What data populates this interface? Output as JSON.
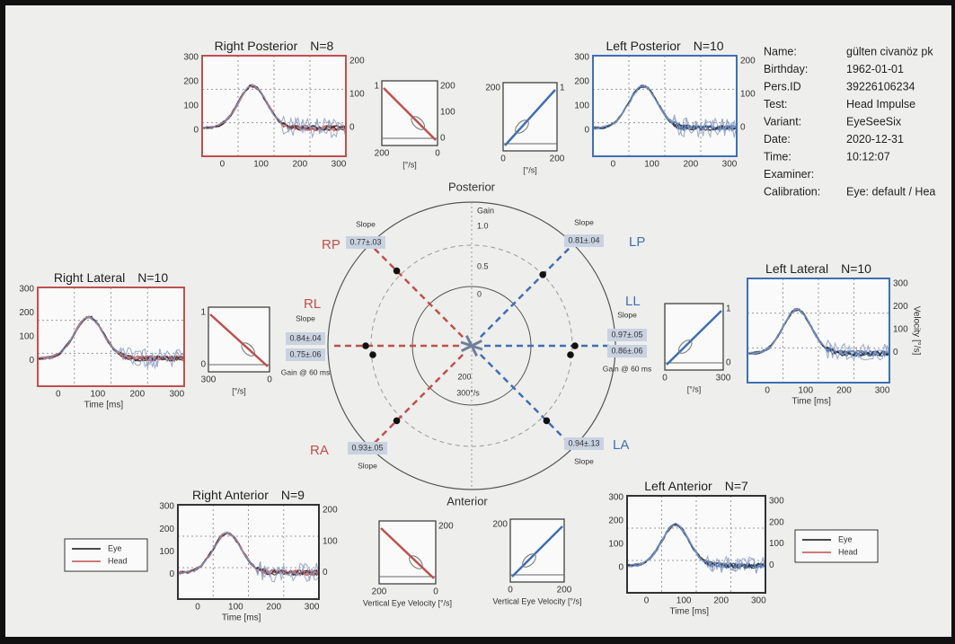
{
  "info": [
    {
      "label": "Name:",
      "value": "gülten civanöz pk"
    },
    {
      "label": "Birthday:",
      "value": "1962-01-01"
    },
    {
      "label": "Pers.ID",
      "value": "39226106234"
    },
    {
      "label": "Test:",
      "value": "Head Impulse"
    },
    {
      "label": "Variant:",
      "value": "EyeSeeSix"
    },
    {
      "label": "Date:",
      "value": "2020-12-31"
    },
    {
      "label": "Time:",
      "value": "10:12:07"
    },
    {
      "label": "Examiner:"
    },
    {
      "label": "Calibration:",
      "value": "Eye: default / Hea"
    }
  ],
  "impulse_panels": [
    {
      "title": "Right Posterior",
      "n": "N=8",
      "yticks": [
        300,
        200,
        100,
        0
      ],
      "y2ticks": [
        200,
        100,
        0
      ],
      "xticks": [
        0,
        100,
        200,
        300
      ]
    },
    {
      "title": "Left Posterior",
      "n": "N=10",
      "yticks": [
        300,
        200,
        100,
        0
      ],
      "y2ticks": [
        200,
        100,
        0
      ],
      "xticks": [
        0,
        100,
        200,
        300
      ]
    },
    {
      "title": "Right Lateral",
      "n": "N=10",
      "yticks": [
        300,
        200,
        100,
        0
      ],
      "xticks": [
        0,
        100,
        200,
        300
      ],
      "xlabel": "Time [ms]"
    },
    {
      "title": "Left Lateral",
      "n": "N=10",
      "y2ticks": [
        300,
        200,
        100,
        0
      ],
      "xticks": [
        0,
        100,
        200,
        300
      ],
      "xlabel": "Time [ms]",
      "y2label": "Velocity [°/s]"
    },
    {
      "title": "Right Anterior",
      "n": "N=9",
      "yticks": [
        300,
        200,
        100,
        0
      ],
      "y2ticks": [
        200,
        100,
        0
      ],
      "xticks": [
        0,
        100,
        200,
        300
      ],
      "xlabel": "Time [ms]"
    },
    {
      "title": "Left Anterior",
      "n": "N=7",
      "yticks": [
        300,
        200,
        100,
        0
      ],
      "y2ticks": [
        300,
        200,
        100,
        0
      ],
      "xticks": [
        0,
        100,
        200,
        300
      ],
      "xlabel": "Time [ms]"
    }
  ],
  "gain_panels": [
    {
      "y2ticks": [
        200,
        100,
        0
      ],
      "yticks": [
        1
      ],
      "xticks": [
        200,
        0
      ],
      "xlabel": "[°/s]"
    },
    {
      "yticks": [
        200
      ],
      "y2ticks": [
        1
      ],
      "xticks": [
        0,
        200
      ],
      "xlabel": "[°/s]"
    },
    {
      "yticks": [
        1,
        0
      ],
      "xticks": [
        300,
        0
      ],
      "xlabel": "[°/s]"
    },
    {
      "y2ticks": [
        1,
        0
      ],
      "xticks": [
        0,
        300
      ],
      "xlabel": "[°/s]"
    },
    {
      "y2ticks": [
        200
      ],
      "xticks": [
        200,
        0
      ],
      "xlabel": "Vertical Eye Velocity [°/s]"
    },
    {
      "yticks": [
        200
      ],
      "xticks": [
        0,
        200
      ],
      "xlabel": "Vertical Eye Velocity [°/s]"
    }
  ],
  "polar": {
    "top": "Posterior",
    "bottom": "Anterior",
    "ring_labels": [
      "Gain",
      "1.0",
      "0.5",
      "0"
    ],
    "velocity_labels": [
      "200",
      "300°/s"
    ],
    "slope_label": "Slope",
    "gain_label": "Gain @ 60 ms",
    "channels": [
      {
        "name": "RP",
        "slope": "0.77±.03"
      },
      {
        "name": "LP",
        "slope": "0.81±.04"
      },
      {
        "name": "RL",
        "slope": "0.84±.04",
        "gain": "0.75±.06"
      },
      {
        "name": "LL",
        "slope": "0.97±.05",
        "gain": "0.86±.06"
      },
      {
        "name": "RA",
        "slope": "0.93±.05"
      },
      {
        "name": "LA",
        "slope": "0.94±.13"
      }
    ]
  },
  "legends": [
    [
      "Eye",
      "Head"
    ],
    [
      "Eye",
      "Head"
    ]
  ]
}
